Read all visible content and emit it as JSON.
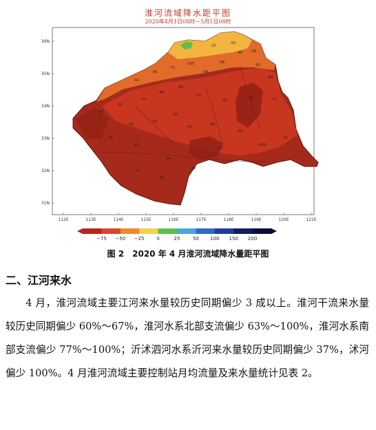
{
  "map": {
    "title": "淮河流域降水距平图",
    "subtitle": "2020年4月1日08时—5月1日08时",
    "lat_labels": [
      "36N",
      "35N",
      "34N",
      "33N",
      "32N",
      "31N"
    ],
    "lon_labels": [
      "112E",
      "113E",
      "114E",
      "115E",
      "116E",
      "117E",
      "118E",
      "119E",
      "120E",
      "121E"
    ],
    "colorbar": {
      "ticks": [
        "−75",
        "−50",
        "−25",
        "0",
        "25",
        "50",
        "100",
        "150",
        "200"
      ],
      "colors": [
        "#b22a1c",
        "#d9452a",
        "#ee8a2e",
        "#f2d34a",
        "#5fbf4f",
        "#4aa7d8",
        "#2f6bc0",
        "#203e96",
        "#131c5e",
        "#0b0e38"
      ]
    },
    "values": [
      "-53",
      "-27",
      "-56",
      "-49",
      "-100",
      "-72",
      "-36",
      "-42",
      "-64",
      "-58",
      "-62",
      "-80",
      "-45",
      "-71",
      "-66",
      "-73",
      "-55",
      "-69",
      "-81",
      "-60",
      "-77",
      "-63",
      "-52",
      "-67",
      "-100",
      "-83",
      "-89",
      "-70",
      "-76",
      "-61",
      "-84",
      "-59",
      "-65",
      "-72",
      "-91",
      "-57"
    ]
  },
  "caption": "图 2　2020 年 4 月淮河流域降水量距平图",
  "section_heading": "二、江河来水",
  "paragraph": "4 月，淮河流域主要江河来水量较历史同期偏少 3 成以上。淮河干流来水量较历史同期偏少 60%～67%，淮河水系北部支流偏少 63%～100%，淮河水系南部支流偏少 77%～100%；沂沭泗河水系沂河来水量较历史同期偏少 37%，沭河偏少 100%。4 月淮河流域主要控制站月均流量及来水量统计见表 2。"
}
